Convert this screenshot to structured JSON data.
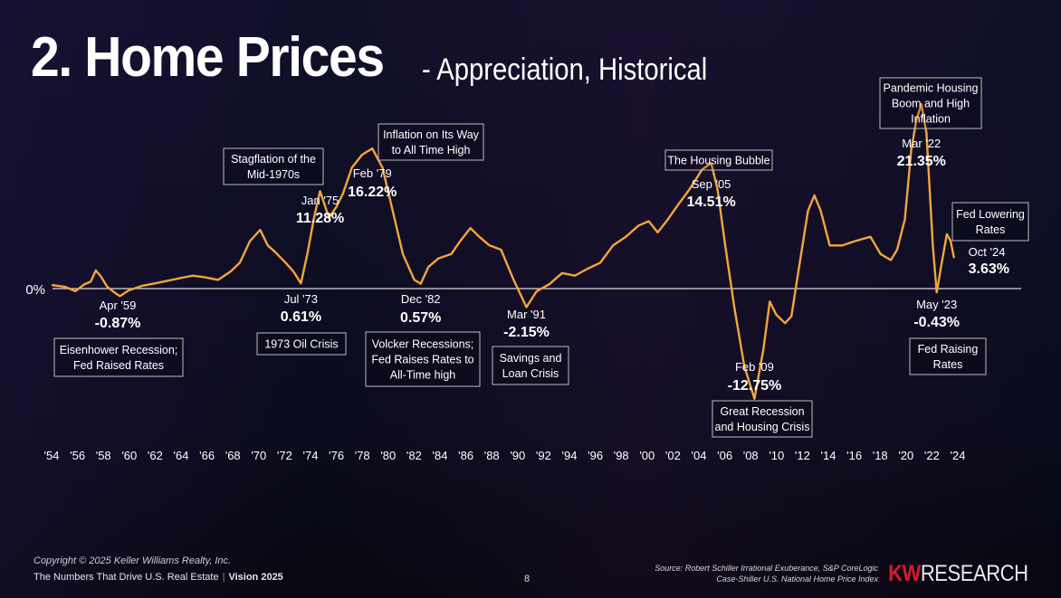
{
  "slide": {
    "title_main": "2. Home Prices",
    "title_sub": "- Appreciation, Historical",
    "copyright": "Copyright © 2025 Keller Williams Realty, Inc.",
    "tagline": "The Numbers That Drive U.S. Real Estate",
    "separator": "|",
    "vision": "Vision 2025",
    "page_number": "8",
    "source_line1": "Source: Robert Schiller Irrational Exuberance, S&P CoreLogic",
    "source_line2": "Case-Shiller U.S. National Home Price Index",
    "brand_kw": "KW",
    "brand_research": "RESEARCH"
  },
  "colors": {
    "line": "#f4a53c",
    "zero_line": "#d9d9d9",
    "box_border": "#bdbdbd",
    "background": "#0c0d1c"
  },
  "chart_data": {
    "type": "line",
    "xlim": [
      1954,
      2025.2
    ],
    "ylim": [
      -15,
      24
    ],
    "zero_label": "0%",
    "x_ticks": [
      "'54",
      "'56",
      "'58",
      "'60",
      "'62",
      "'64",
      "'66",
      "'68",
      "'70",
      "'72",
      "'74",
      "'76",
      "'78",
      "'80",
      "'82",
      "'84",
      "'86",
      "'88",
      "'90",
      "'92",
      "'94",
      "'96",
      "'98",
      "'00",
      "'02",
      "'04",
      "'06",
      "'08",
      "'10",
      "'12",
      "'14",
      "'16",
      "'18",
      "'20",
      "'22",
      "'24"
    ],
    "series": [
      {
        "values": [
          [
            1954.0,
            0.4
          ],
          [
            1955.0,
            0.2
          ],
          [
            1955.8,
            -0.3
          ],
          [
            1956.5,
            0.5
          ],
          [
            1957.0,
            0.8
          ],
          [
            1957.4,
            2.1
          ],
          [
            1957.8,
            1.4
          ],
          [
            1958.3,
            0.2
          ],
          [
            1959.0,
            -0.6
          ],
          [
            1959.3,
            -0.87
          ],
          [
            1960.0,
            -0.2
          ],
          [
            1961.0,
            0.3
          ],
          [
            1962.0,
            0.6
          ],
          [
            1963.0,
            0.9
          ],
          [
            1964.0,
            1.2
          ],
          [
            1965.0,
            1.5
          ],
          [
            1966.0,
            1.3
          ],
          [
            1967.0,
            1.0
          ],
          [
            1968.0,
            2.0
          ],
          [
            1968.7,
            3.0
          ],
          [
            1969.5,
            5.5
          ],
          [
            1970.3,
            6.8
          ],
          [
            1970.9,
            5.0
          ],
          [
            1971.5,
            4.2
          ],
          [
            1972.3,
            3.0
          ],
          [
            1972.9,
            2.0
          ],
          [
            1973.5,
            0.61
          ],
          [
            1974.0,
            4.0
          ],
          [
            1974.5,
            8.0
          ],
          [
            1975.0,
            11.28
          ],
          [
            1975.7,
            8.2
          ],
          [
            1976.3,
            9.5
          ],
          [
            1976.8,
            11.0
          ],
          [
            1977.5,
            14.0
          ],
          [
            1978.3,
            15.5
          ],
          [
            1979.1,
            16.22
          ],
          [
            1979.9,
            14.0
          ],
          [
            1980.7,
            9.0
          ],
          [
            1981.5,
            4.0
          ],
          [
            1982.4,
            1.0
          ],
          [
            1982.9,
            0.57
          ],
          [
            1983.5,
            2.5
          ],
          [
            1984.3,
            3.5
          ],
          [
            1985.3,
            4.0
          ],
          [
            1986.0,
            5.5
          ],
          [
            1986.8,
            7.0
          ],
          [
            1987.5,
            6.0
          ],
          [
            1988.3,
            5.0
          ],
          [
            1989.2,
            4.5
          ],
          [
            1990.2,
            1.0
          ],
          [
            1991.2,
            -2.15
          ],
          [
            1992.0,
            -0.3
          ],
          [
            1993.0,
            0.5
          ],
          [
            1994.0,
            1.8
          ],
          [
            1995.0,
            1.5
          ],
          [
            1996.0,
            2.3
          ],
          [
            1997.0,
            3.0
          ],
          [
            1998.0,
            5.0
          ],
          [
            1999.0,
            6.0
          ],
          [
            2000.0,
            7.3
          ],
          [
            2000.8,
            7.8
          ],
          [
            2001.5,
            6.5
          ],
          [
            2002.3,
            8.0
          ],
          [
            2003.0,
            9.5
          ],
          [
            2004.0,
            11.5
          ],
          [
            2005.0,
            13.8
          ],
          [
            2005.7,
            14.51
          ],
          [
            2006.2,
            11.5
          ],
          [
            2006.8,
            5.0
          ],
          [
            2007.5,
            -2.0
          ],
          [
            2008.3,
            -9.0
          ],
          [
            2009.1,
            -12.75
          ],
          [
            2009.8,
            -7.0
          ],
          [
            2010.3,
            -1.5
          ],
          [
            2010.8,
            -3.0
          ],
          [
            2011.5,
            -4.0
          ],
          [
            2012.0,
            -3.2
          ],
          [
            2012.6,
            2.5
          ],
          [
            2013.3,
            9.0
          ],
          [
            2013.8,
            10.8
          ],
          [
            2014.3,
            9.0
          ],
          [
            2015.0,
            5.0
          ],
          [
            2016.0,
            5.0
          ],
          [
            2017.0,
            5.5
          ],
          [
            2018.2,
            6.0
          ],
          [
            2019.0,
            4.0
          ],
          [
            2019.8,
            3.3
          ],
          [
            2020.3,
            4.5
          ],
          [
            2020.9,
            8.0
          ],
          [
            2021.4,
            16.0
          ],
          [
            2021.8,
            19.5
          ],
          [
            2022.2,
            21.35
          ],
          [
            2022.6,
            18.0
          ],
          [
            2023.1,
            5.0
          ],
          [
            2023.4,
            -0.43
          ],
          [
            2023.8,
            3.0
          ],
          [
            2024.2,
            6.3
          ],
          [
            2024.5,
            5.5
          ],
          [
            2024.75,
            3.63
          ]
        ]
      }
    ],
    "annotations": [
      {
        "x": 1959.3,
        "y": -0.87,
        "date": "Apr '59",
        "value": "-0.87%",
        "pos": "below",
        "note": [
          "Eisenhower Recession;",
          "Fed Raised Rates"
        ]
      },
      {
        "x": 1973.5,
        "y": 0.61,
        "date": "Jul '73",
        "value": "0.61%",
        "pos": "below",
        "note": [
          "1973 Oil Crisis"
        ]
      },
      {
        "x": 1975.0,
        "y": 11.28,
        "date": "Jan '75",
        "value": "11.28%",
        "pos": "above",
        "note": []
      },
      {
        "x": 1979.1,
        "y": 16.22,
        "date": "Feb '79",
        "value": "16.22%",
        "pos": "above",
        "note": []
      },
      {
        "x": 1982.9,
        "y": 0.57,
        "date": "Dec '82",
        "value": "0.57%",
        "pos": "below",
        "note": [
          "Volcker Recessions;",
          "Fed Raises Rates to",
          "All-Time high"
        ]
      },
      {
        "x": 1991.2,
        "y": -2.15,
        "date": "Mar '91",
        "value": "-2.15%",
        "pos": "below",
        "note": [
          "Savings and",
          "Loan Crisis"
        ]
      },
      {
        "x": 2005.7,
        "y": 14.51,
        "date": "Sep '05",
        "value": "14.51%",
        "pos": "above",
        "note": []
      },
      {
        "x": 2009.1,
        "y": -12.75,
        "date": "Feb '09",
        "value": "-12.75%",
        "pos": "below",
        "note": [
          "Great Recession",
          "and Housing Crisis"
        ]
      },
      {
        "x": 2022.2,
        "y": 21.35,
        "date": "Mar '22",
        "value": "21.35%",
        "pos": "above",
        "note": []
      },
      {
        "x": 2023.4,
        "y": -0.43,
        "date": "May '23",
        "value": "-0.43%",
        "pos": "below",
        "note": [
          "Fed Raising",
          "Rates"
        ]
      },
      {
        "x": 2024.75,
        "y": 3.63,
        "date": "Oct '24",
        "value": "3.63%",
        "pos": "right",
        "note": []
      }
    ],
    "event_boxes": [
      {
        "lines": [
          "Stagflation of the",
          "Mid-1970s"
        ]
      },
      {
        "lines": [
          "Inflation on Its Way",
          "to All Time High"
        ]
      },
      {
        "lines": [
          "The Housing Bubble"
        ]
      },
      {
        "lines": [
          "Pandemic Housing",
          "Boom and High",
          "Inflation"
        ]
      },
      {
        "lines": [
          "Fed Lowering",
          "Rates"
        ]
      }
    ]
  }
}
